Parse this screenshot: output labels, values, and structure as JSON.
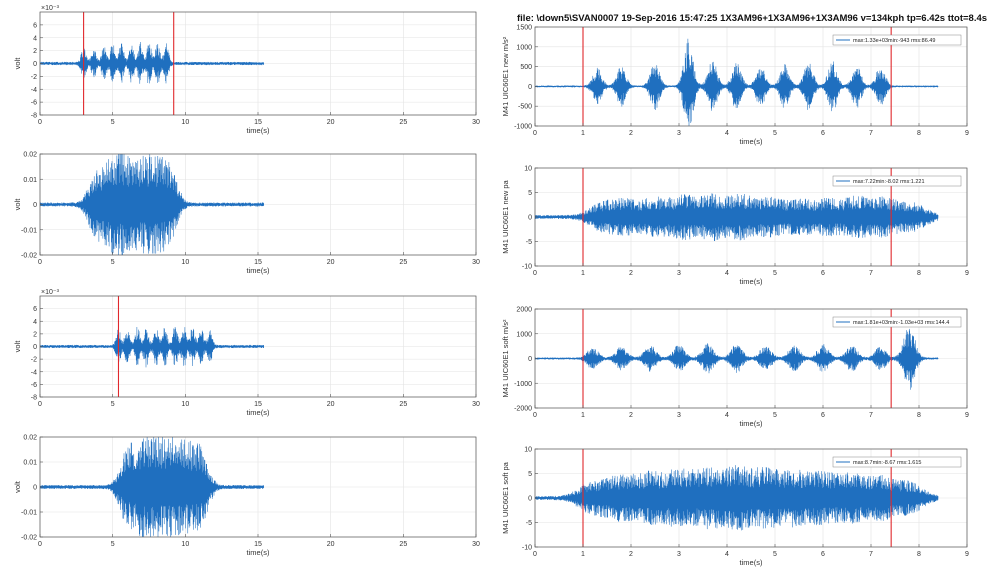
{
  "figure": {
    "title": "file: \\down5\\SVAN0007    19-Sep-2016 15:47:25   1X3AM96+1X3AM96+1X3AM96  v=134kph tp=6.42s ttot=8.4s"
  },
  "chart_data": [
    {
      "id": "left-1",
      "type": "line",
      "xlabel": "time(s)",
      "ylabel": "volt",
      "exponent": "×10⁻³",
      "xlim": [
        0,
        30
      ],
      "ylim": [
        -8,
        8
      ],
      "xticks": [
        "0",
        "5",
        "10",
        "15",
        "20",
        "25",
        "30"
      ],
      "xtick_values": [
        0,
        5,
        10,
        15,
        20,
        25,
        30
      ],
      "yticks": [
        "-8",
        "-6",
        "-4",
        "-2",
        "0",
        "2",
        "4",
        "6"
      ],
      "ytick_values": [
        -8,
        -6,
        -4,
        -2,
        0,
        2,
        4,
        6
      ],
      "signal": {
        "duration": 15.4,
        "baseline_amplitude": 0.25,
        "color": "#1f6fbf",
        "bursts": [
          [
            3.0,
            2.4
          ],
          [
            3.7,
            2.2
          ],
          [
            4.4,
            2.6
          ],
          [
            5.0,
            3.0
          ],
          [
            5.6,
            3.0
          ],
          [
            6.3,
            3.0
          ],
          [
            6.9,
            3.1
          ],
          [
            7.5,
            3.2
          ],
          [
            8.1,
            3.1
          ],
          [
            8.7,
            3.0
          ]
        ],
        "burst_width": 0.22
      },
      "markers": [
        3.0,
        9.2
      ],
      "marker_color": "#e0282c"
    },
    {
      "id": "left-2",
      "type": "line",
      "xlabel": "time(s)",
      "ylabel": "volt",
      "xlim": [
        0,
        30
      ],
      "ylim": [
        -0.02,
        0.02
      ],
      "xticks": [
        "0",
        "5",
        "10",
        "15",
        "20",
        "25",
        "30"
      ],
      "xtick_values": [
        0,
        5,
        10,
        15,
        20,
        25,
        30
      ],
      "yticks": [
        "-0.02",
        "-0.01",
        "0",
        "0.01",
        "0.02"
      ],
      "ytick_values": [
        -0.02,
        -0.01,
        0,
        0.01,
        0.02
      ],
      "signal": {
        "duration": 15.4,
        "baseline_amplitude": 0.0008,
        "color": "#1f6fbf",
        "bursts": [
          [
            3.6,
            0.008
          ],
          [
            4.3,
            0.01
          ],
          [
            5.0,
            0.012
          ],
          [
            5.6,
            0.013
          ],
          [
            6.3,
            0.012
          ],
          [
            7.0,
            0.012
          ],
          [
            7.7,
            0.013
          ],
          [
            8.4,
            0.012
          ],
          [
            9.1,
            0.011
          ]
        ],
        "burst_width": 0.6
      },
      "markers": []
    },
    {
      "id": "left-3",
      "type": "line",
      "xlabel": "time(s)",
      "ylabel": "volt",
      "exponent": "×10⁻³",
      "xlim": [
        0,
        30
      ],
      "ylim": [
        -8,
        8
      ],
      "xticks": [
        "0",
        "5",
        "10",
        "15",
        "20",
        "25",
        "30"
      ],
      "xtick_values": [
        0,
        5,
        10,
        15,
        20,
        25,
        30
      ],
      "yticks": [
        "-8",
        "-6",
        "-4",
        "-2",
        "0",
        "2",
        "4",
        "6"
      ],
      "ytick_values": [
        -8,
        -6,
        -4,
        -2,
        0,
        2,
        4,
        6
      ],
      "signal": {
        "duration": 15.4,
        "baseline_amplitude": 0.25,
        "color": "#1f6fbf",
        "bursts": [
          [
            5.4,
            2.5
          ],
          [
            6.0,
            2.7
          ],
          [
            6.7,
            3.0
          ],
          [
            7.3,
            3.1
          ],
          [
            8.0,
            3.2
          ],
          [
            8.6,
            3.1
          ],
          [
            9.3,
            3.3
          ],
          [
            9.9,
            3.2
          ],
          [
            10.5,
            3.0
          ],
          [
            11.1,
            2.6
          ],
          [
            11.7,
            2.4
          ]
        ],
        "burst_width": 0.22
      },
      "markers": [
        5.4
      ],
      "marker_color": "#e0282c"
    },
    {
      "id": "left-4",
      "type": "line",
      "xlabel": "time(s)",
      "ylabel": "volt",
      "xlim": [
        0,
        30
      ],
      "ylim": [
        -0.02,
        0.02
      ],
      "xticks": [
        "0",
        "5",
        "10",
        "15",
        "20",
        "25",
        "30"
      ],
      "xtick_values": [
        0,
        5,
        10,
        15,
        20,
        25,
        30
      ],
      "yticks": [
        "-0.02",
        "-0.01",
        "0",
        "0.01",
        "0.02"
      ],
      "ytick_values": [
        -0.02,
        -0.01,
        0,
        0.01,
        0.02
      ],
      "signal": {
        "duration": 15.4,
        "baseline_amplitude": 0.0008,
        "color": "#1f6fbf",
        "bursts": [
          [
            5.8,
            0.01
          ],
          [
            6.5,
            0.012
          ],
          [
            7.2,
            0.013
          ],
          [
            7.9,
            0.014
          ],
          [
            8.6,
            0.013
          ],
          [
            9.3,
            0.013
          ],
          [
            10.0,
            0.012
          ],
          [
            10.7,
            0.011
          ],
          [
            11.3,
            0.009
          ]
        ],
        "burst_width": 0.6
      },
      "markers": []
    },
    {
      "id": "right-1",
      "type": "line",
      "xlabel": "time(s)",
      "ylabel": "M41 UIC60E1 new m/s²",
      "xlim": [
        0,
        9
      ],
      "ylim": [
        -1000,
        1500
      ],
      "xticks": [
        "0",
        "1",
        "2",
        "3",
        "4",
        "5",
        "6",
        "7",
        "8",
        "9"
      ],
      "xtick_values": [
        0,
        1,
        2,
        3,
        4,
        5,
        6,
        7,
        8,
        9
      ],
      "yticks": [
        "-1000",
        "-500",
        "0",
        "500",
        "1000",
        "1500"
      ],
      "ytick_values": [
        -1000,
        -500,
        0,
        500,
        1000,
        1500
      ],
      "legend": "max:1.33e+03min:-943 rms:86.49",
      "legend_pos": "top-right",
      "signal": {
        "duration": 8.4,
        "baseline_amplitude": 20,
        "color": "#1f6fbf",
        "bursts": [
          [
            1.3,
            450
          ],
          [
            1.8,
            500
          ],
          [
            2.5,
            600
          ],
          [
            3.2,
            1200
          ],
          [
            3.7,
            650
          ],
          [
            4.2,
            600
          ],
          [
            4.7,
            550
          ],
          [
            5.2,
            550
          ],
          [
            5.7,
            600
          ],
          [
            6.2,
            650
          ],
          [
            6.7,
            550
          ],
          [
            7.2,
            500
          ]
        ],
        "burst_width": 0.13
      },
      "markers": [
        1.0,
        7.42
      ],
      "marker_color": "#e0282c"
    },
    {
      "id": "right-2",
      "type": "line",
      "xlabel": "time(s)",
      "ylabel": "M41 UIC60E1 new pa",
      "xlim": [
        0,
        9
      ],
      "ylim": [
        -10,
        10
      ],
      "xticks": [
        "0",
        "1",
        "2",
        "3",
        "4",
        "5",
        "6",
        "7",
        "8",
        "9"
      ],
      "xtick_values": [
        0,
        1,
        2,
        3,
        4,
        5,
        6,
        7,
        8,
        9
      ],
      "yticks": [
        "-10",
        "-5",
        "0",
        "5",
        "10"
      ],
      "ytick_values": [
        -10,
        -5,
        0,
        5,
        10
      ],
      "legend": "max:7.22min:-8.02 rms:1.221",
      "legend_pos": "top-right",
      "signal": {
        "duration": 8.4,
        "baseline_amplitude": 0.4,
        "color": "#1f6fbf",
        "bursts": [
          [
            1.4,
            2.5
          ],
          [
            1.9,
            3.0
          ],
          [
            2.5,
            3.5
          ],
          [
            3.1,
            4.0
          ],
          [
            3.7,
            4.2
          ],
          [
            4.3,
            4.0
          ],
          [
            4.9,
            3.5
          ],
          [
            5.5,
            3.2
          ],
          [
            6.1,
            3.2
          ],
          [
            6.7,
            3.8
          ],
          [
            7.3,
            3.5
          ],
          [
            7.9,
            2.5
          ]
        ],
        "burst_width": 0.35
      },
      "markers": [
        1.0,
        7.42
      ],
      "marker_color": "#e0282c"
    },
    {
      "id": "right-3",
      "type": "line",
      "xlabel": "time(s)",
      "ylabel": "M41 UIC60E1 soft m/s²",
      "xlim": [
        0,
        9
      ],
      "ylim": [
        -2000,
        2000
      ],
      "xticks": [
        "0",
        "1",
        "2",
        "3",
        "4",
        "5",
        "6",
        "7",
        "8",
        "9"
      ],
      "xtick_values": [
        0,
        1,
        2,
        3,
        4,
        5,
        6,
        7,
        8,
        9
      ],
      "yticks": [
        "-2000",
        "-1000",
        "0",
        "1000",
        "2000"
      ],
      "ytick_values": [
        -2000,
        -1000,
        0,
        1000,
        2000
      ],
      "legend": "max:1.81e+03min:-1.03e+03 rms:144.4",
      "legend_pos": "top-right",
      "signal": {
        "duration": 8.4,
        "baseline_amplitude": 40,
        "color": "#1f6fbf",
        "bursts": [
          [
            1.2,
            400
          ],
          [
            1.8,
            450
          ],
          [
            2.4,
            500
          ],
          [
            3.0,
            550
          ],
          [
            3.6,
            600
          ],
          [
            4.2,
            550
          ],
          [
            4.8,
            500
          ],
          [
            5.4,
            500
          ],
          [
            6.0,
            550
          ],
          [
            6.6,
            500
          ],
          [
            7.2,
            450
          ],
          [
            7.8,
            1300
          ]
        ],
        "burst_width": 0.16
      },
      "markers": [
        1.0,
        7.42
      ],
      "marker_color": "#e0282c"
    },
    {
      "id": "right-4",
      "type": "line",
      "xlabel": "time(s)",
      "ylabel": "M41 UIC60E1 soft pa",
      "xlim": [
        0,
        9
      ],
      "ylim": [
        -10,
        10
      ],
      "xticks": [
        "0",
        "1",
        "2",
        "3",
        "4",
        "5",
        "6",
        "7",
        "8",
        "9"
      ],
      "xtick_values": [
        0,
        1,
        2,
        3,
        4,
        5,
        6,
        7,
        8,
        9
      ],
      "yticks": [
        "-10",
        "-5",
        "0",
        "5",
        "10"
      ],
      "ytick_values": [
        -10,
        -5,
        0,
        5,
        10
      ],
      "legend": "max:8.7min:-8.67 rms:1.615",
      "legend_pos": "top-right",
      "signal": {
        "duration": 8.4,
        "baseline_amplitude": 0.4,
        "color": "#1f6fbf",
        "bursts": [
          [
            1.2,
            3.0
          ],
          [
            1.8,
            4.0
          ],
          [
            2.4,
            4.5
          ],
          [
            3.0,
            5.0
          ],
          [
            3.6,
            5.2
          ],
          [
            4.2,
            5.5
          ],
          [
            4.8,
            5.2
          ],
          [
            5.4,
            4.8
          ],
          [
            6.0,
            4.5
          ],
          [
            6.6,
            4.2
          ],
          [
            7.2,
            3.8
          ],
          [
            7.8,
            2.8
          ]
        ],
        "burst_width": 0.38
      },
      "markers": [
        1.0,
        7.42
      ],
      "marker_color": "#e0282c"
    }
  ]
}
